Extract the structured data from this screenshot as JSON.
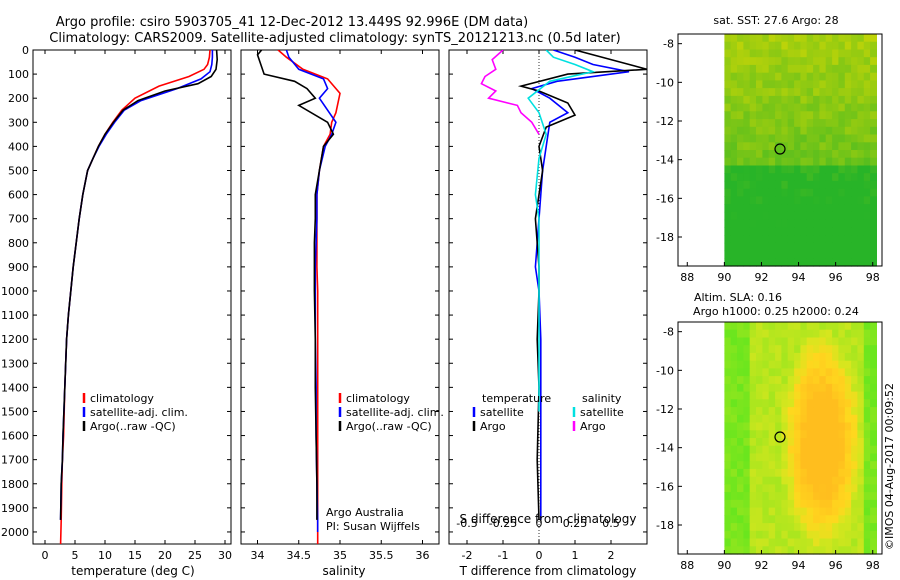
{
  "title": {
    "line1": "Argo profile: csiro 5903705_41 12-Dec-2012 13.449S 92.996E (DM data)",
    "line2": "Climatology: CARS2009. Satellite-adjusted climatology: synTS_20121213.nc (0.5d later)"
  },
  "chart_data": [
    {
      "id": "temperature",
      "type": "line",
      "xlabel": "temperature (deg C)",
      "ylabel": "",
      "xlim": [
        -2,
        31
      ],
      "ylim": [
        2050,
        0
      ],
      "xticks": [
        0,
        5,
        10,
        15,
        20,
        25,
        30
      ],
      "yticks": [
        0,
        100,
        200,
        300,
        400,
        500,
        600,
        700,
        800,
        900,
        1000,
        1100,
        1200,
        1300,
        1400,
        1500,
        1600,
        1700,
        1800,
        1900,
        2000
      ],
      "legend": [
        "climatology",
        "satellite-adj. clim.",
        "Argo(..raw -QC)"
      ],
      "series": [
        {
          "name": "climatology",
          "color": "#ff0000",
          "x": [
            27.5,
            27.4,
            27.1,
            26.5,
            24.0,
            19.0,
            15.0,
            12.8,
            11.3,
            10.0,
            8.9,
            8.0,
            7.1,
            6.3,
            5.7,
            5.2,
            4.7,
            4.3,
            3.9,
            3.6,
            3.3,
            3.1,
            2.9,
            2.8,
            2.7,
            2.6
          ],
          "y": [
            0,
            30,
            60,
            80,
            110,
            150,
            200,
            250,
            300,
            350,
            400,
            450,
            500,
            600,
            700,
            800,
            900,
            1000,
            1100,
            1200,
            1400,
            1600,
            1700,
            1800,
            1950,
            2050
          ]
        },
        {
          "name": "satellite-adj. clim.",
          "color": "#0000ff",
          "x": [
            27.9,
            27.9,
            27.8,
            27.5,
            26.0,
            22.0,
            16.0,
            13.2,
            11.6,
            10.2,
            9.0,
            8.0,
            7.1,
            6.3,
            5.7,
            5.2,
            4.7,
            4.3,
            3.9,
            3.6,
            3.3,
            3.0,
            2.9,
            2.7,
            2.6
          ],
          "y": [
            0,
            30,
            60,
            90,
            120,
            160,
            210,
            250,
            300,
            350,
            400,
            450,
            500,
            600,
            700,
            800,
            900,
            1000,
            1100,
            1200,
            1400,
            1600,
            1700,
            1800,
            1950
          ]
        },
        {
          "name": "Argo(..raw -QC)",
          "color": "#000000",
          "x": [
            28.6,
            28.7,
            28.5,
            27.7,
            25.5,
            20.0,
            15.5,
            13.0,
            11.4,
            10.0,
            8.9,
            8.0,
            7.1,
            6.3,
            5.7,
            5.2,
            4.7,
            4.3,
            3.9,
            3.6,
            3.3,
            3.0,
            2.9,
            2.7,
            2.6
          ],
          "y": [
            0,
            40,
            80,
            110,
            140,
            170,
            210,
            250,
            300,
            350,
            400,
            450,
            500,
            600,
            700,
            800,
            900,
            1000,
            1100,
            1200,
            1400,
            1600,
            1700,
            1800,
            1950
          ]
        }
      ]
    },
    {
      "id": "salinity",
      "type": "line",
      "xlabel": "salinity",
      "xlim": [
        33.8,
        36.2
      ],
      "ylim": [
        2050,
        0
      ],
      "xticks": [
        34,
        34.5,
        35,
        35.5,
        36
      ],
      "legend": [
        "climatology",
        "satellite-adj. clim.",
        "Argo(..raw -QC)"
      ],
      "annotation": [
        "Argo Australia",
        "PI: Susan Wijffels"
      ],
      "series": [
        {
          "name": "climatology",
          "color": "#ff0000",
          "x": [
            34.25,
            34.35,
            34.55,
            34.85,
            35.0,
            34.95,
            34.9,
            34.88,
            34.8,
            34.75,
            34.72,
            34.72,
            34.72,
            34.72,
            34.73,
            34.73,
            34.73,
            34.73,
            34.73,
            34.73,
            34.73
          ],
          "y": [
            0,
            30,
            80,
            120,
            180,
            260,
            300,
            350,
            400,
            500,
            600,
            700,
            800,
            900,
            1000,
            1200,
            1400,
            1600,
            1800,
            1950,
            2050
          ]
        },
        {
          "name": "satellite-adj. clim.",
          "color": "#0000ff",
          "x": [
            34.35,
            34.38,
            34.5,
            34.8,
            34.85,
            34.75,
            34.95,
            34.9,
            34.82,
            34.75,
            34.72,
            34.72,
            34.71,
            34.7,
            34.7,
            34.7,
            34.71,
            34.71,
            34.72,
            34.73,
            34.73
          ],
          "y": [
            0,
            30,
            80,
            120,
            160,
            200,
            300,
            350,
            400,
            500,
            600,
            700,
            800,
            900,
            1000,
            1200,
            1400,
            1600,
            1800,
            1950,
            2000
          ]
        },
        {
          "name": "Argo(..raw -QC)",
          "color": "#000000",
          "x": [
            34.05,
            34.0,
            34.08,
            34.45,
            34.6,
            34.7,
            34.5,
            34.85,
            34.92,
            34.8,
            34.75,
            34.7,
            34.7,
            34.69,
            34.69,
            34.69,
            34.7,
            34.7,
            34.71,
            34.72,
            34.72
          ],
          "y": [
            0,
            20,
            100,
            130,
            160,
            200,
            230,
            300,
            350,
            400,
            500,
            600,
            700,
            800,
            900,
            1000,
            1200,
            1400,
            1600,
            1800,
            1950
          ]
        }
      ]
    },
    {
      "id": "difference",
      "type": "line",
      "xlabel_top": "S difference from climatology",
      "xlabel": "T difference from climatology",
      "xlim": [
        -2.5,
        3
      ],
      "ylim": [
        2050,
        0
      ],
      "xticks_bottom": [
        -2,
        -1,
        0,
        1,
        2
      ],
      "xticks_top": [
        "-0.5",
        "-0.25",
        "0",
        "0.25",
        "0.5"
      ],
      "xticks_top_pos": [
        -2,
        -1,
        0,
        1,
        2
      ],
      "legend_headers": [
        "temperature",
        "salinity"
      ],
      "legend": [
        "satellite",
        "Argo",
        "satellite",
        "Argo"
      ],
      "series": [
        {
          "name": "temperature satellite",
          "color": "#0000ff",
          "x": [
            0.4,
            1.0,
            1.5,
            2.5,
            0.5,
            -0.2,
            0.3,
            0.8,
            0.3,
            0.2,
            0.1,
            0.05,
            0.0,
            -0.05,
            -0.1,
            0.0,
            0.05,
            0.05,
            0.05,
            0.05
          ],
          "y": [
            0,
            30,
            60,
            90,
            130,
            160,
            200,
            260,
            300,
            400,
            500,
            600,
            700,
            800,
            900,
            1000,
            1200,
            1400,
            1700,
            1950
          ]
        },
        {
          "name": "temperature Argo",
          "color": "#000000",
          "x": [
            1.0,
            2.0,
            3.0,
            0.8,
            -0.5,
            0.0,
            0.8,
            1.0,
            0.2,
            0.0,
            0.1,
            0.0,
            -0.1,
            -0.05,
            0.0,
            0.0,
            -0.05,
            0.0,
            -0.05,
            0.0
          ],
          "y": [
            0,
            40,
            80,
            100,
            150,
            170,
            220,
            270,
            320,
            400,
            500,
            600,
            700,
            800,
            900,
            1000,
            1200,
            1400,
            1700,
            1950
          ]
        },
        {
          "name": "salinity satellite",
          "color": "#00e0e0",
          "x": [
            0.2,
            0.4,
            1.0,
            1.5,
            0.3,
            -0.3,
            0.0,
            0.2,
            0.0,
            -0.1,
            0.0,
            0.0,
            0.0,
            0.0,
            0.0,
            0.0,
            0.0
          ],
          "y": [
            0,
            30,
            60,
            90,
            130,
            200,
            260,
            350,
            450,
            600,
            700,
            800,
            1000,
            1200,
            1300,
            1400,
            1500
          ]
        },
        {
          "name": "salinity Argo",
          "color": "#ff00ff",
          "x": [
            -1.0,
            -1.3,
            -1.2,
            -1.5,
            -1.6,
            -1.2,
            -1.4,
            -0.6,
            -0.5,
            -0.2,
            0.0
          ],
          "y": [
            0,
            40,
            80,
            110,
            140,
            170,
            200,
            230,
            260,
            300,
            350
          ]
        }
      ]
    },
    {
      "id": "sst_map",
      "type": "heatmap",
      "title": "sat. SST: 27.6 Argo: 28",
      "xlim": [
        87.5,
        98.5
      ],
      "ylim": [
        -19.5,
        -7.5
      ],
      "xticks": [
        88,
        90,
        92,
        94,
        96,
        98
      ],
      "yticks": [
        -8,
        -10,
        -12,
        -14,
        -16,
        -18
      ],
      "data_extent_lon": [
        90,
        98.2
      ],
      "marker": {
        "lon": 93.0,
        "lat": -13.45
      }
    },
    {
      "id": "sla_map",
      "type": "heatmap",
      "title": [
        "Altim. SLA: 0.16",
        "Argo h1000: 0.25 h2000: 0.24"
      ],
      "xlim": [
        87.5,
        98.5
      ],
      "ylim": [
        -19.5,
        -7.5
      ],
      "xticks": [
        88,
        90,
        92,
        94,
        96,
        98
      ],
      "yticks": [
        -8,
        -10,
        -12,
        -14,
        -16,
        -18
      ],
      "data_extent_lon": [
        90,
        98.2
      ],
      "marker": {
        "lon": 93.0,
        "lat": -13.45
      }
    }
  ],
  "footer": "©IMOS 04-Aug-2017 00:09:52"
}
